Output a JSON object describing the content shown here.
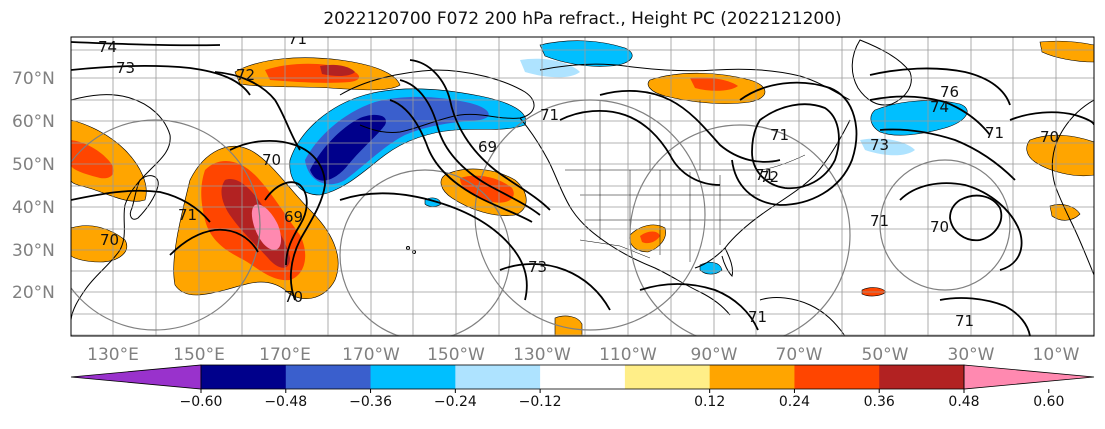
{
  "title": "2022120700 F072 200 hPa refract., Height PC (2022121200)",
  "map": {
    "lat_labels": [
      "70°N",
      "60°N",
      "50°N",
      "40°N",
      "30°N",
      "20°N"
    ],
    "lon_labels": [
      "130°E",
      "150°E",
      "170°E",
      "170°W",
      "150°W",
      "130°W",
      "110°W",
      "90°W",
      "70°W",
      "50°W",
      "30°W",
      "10°W"
    ],
    "contour_labels": [
      "74",
      "73",
      "72",
      "71",
      "70",
      "69",
      "69",
      "70",
      "71",
      "73",
      "71",
      "71",
      "71",
      "72",
      "74",
      "76",
      "71",
      "70",
      "71",
      "70",
      "73",
      "71",
      "70",
      "71"
    ],
    "colors": {
      "ocean_bg": "#ffffff",
      "coast": "#000000",
      "grid": "#9a9a9a",
      "contour": "#000000",
      "circle": "#808080"
    }
  },
  "colorbar": {
    "colors": [
      "#9932cc",
      "#00008b",
      "#3a5fcd",
      "#00bfff",
      "#aee3ff",
      "#ffffff",
      "#ffee88",
      "#ffa500",
      "#ff4500",
      "#b22222",
      "#ff89b0"
    ],
    "ticks": [
      "−0.60",
      "−0.48",
      "−0.36",
      "−0.24",
      "−0.12",
      "0.12",
      "0.24",
      "0.36",
      "0.48",
      "0.60"
    ],
    "extend": "both"
  }
}
